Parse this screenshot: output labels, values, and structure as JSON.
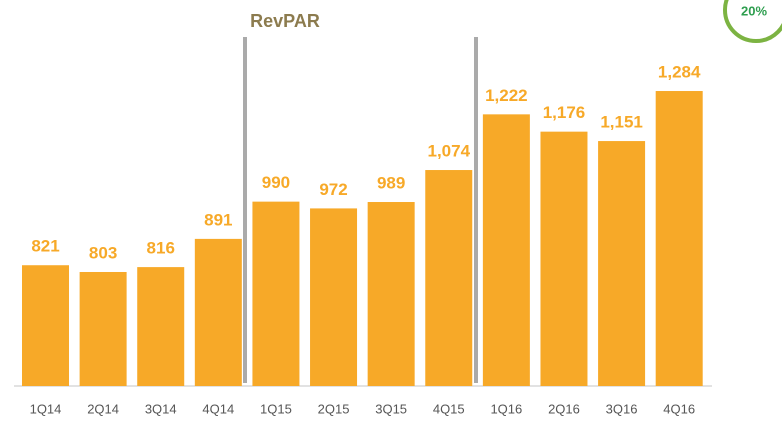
{
  "chart_data": {
    "type": "bar",
    "title": "RevPAR",
    "categories": [
      "1Q14",
      "2Q14",
      "3Q14",
      "4Q14",
      "1Q15",
      "2Q15",
      "3Q15",
      "4Q15",
      "1Q16",
      "2Q16",
      "3Q16",
      "4Q16"
    ],
    "values": [
      821,
      803,
      816,
      891,
      990,
      972,
      989,
      1074,
      1222,
      1176,
      1151,
      1284
    ],
    "value_labels": [
      "821",
      "803",
      "816",
      "891",
      "990",
      "972",
      "989",
      "1,074",
      "1,222",
      "1,176",
      "1,151",
      "1,284"
    ],
    "color": "#f7a928",
    "ylim": [
      500,
      1300
    ],
    "annotation": "20%"
  }
}
